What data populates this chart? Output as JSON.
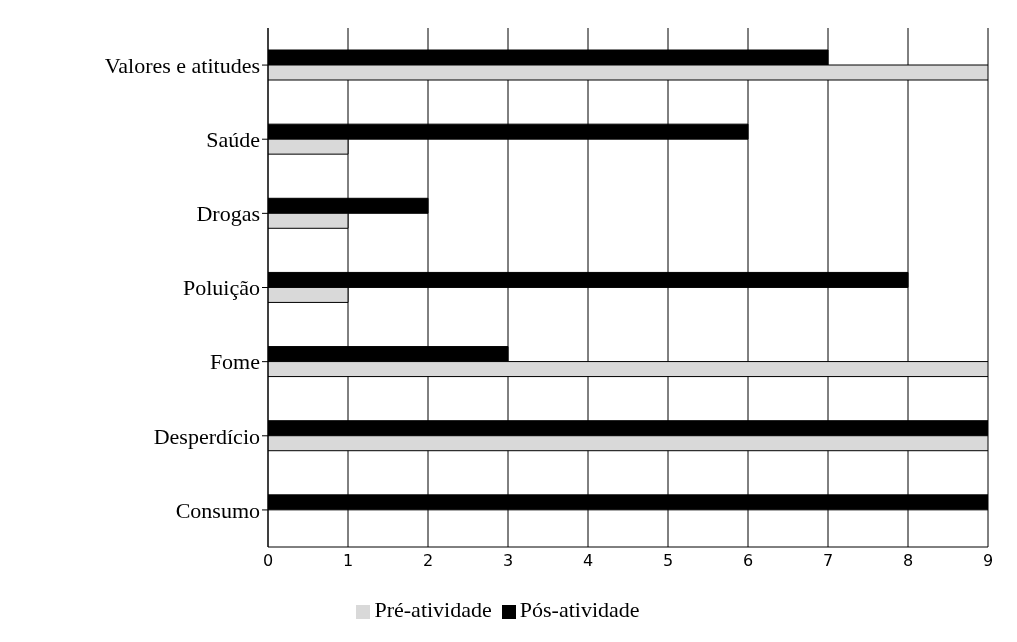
{
  "chart_data": {
    "type": "bar",
    "orientation": "horizontal",
    "categories": [
      "Valores e atitudes",
      "Saúde",
      "Drogas",
      "Poluição",
      "Fome",
      "Desperdício",
      "Consumo"
    ],
    "series": [
      {
        "name": "Pós-atividade",
        "color": "#000000",
        "values": [
          7,
          6,
          2,
          8,
          3,
          9,
          9
        ]
      },
      {
        "name": "Pré-atividade",
        "color": "#d9d9d9",
        "values": [
          9,
          1,
          1,
          1,
          9,
          9,
          0
        ]
      }
    ],
    "xlim": [
      0,
      9
    ],
    "xticks": [
      0,
      1,
      2,
      3,
      4,
      5,
      6,
      7,
      8,
      9
    ],
    "grid": "x",
    "legend": "bottom"
  }
}
